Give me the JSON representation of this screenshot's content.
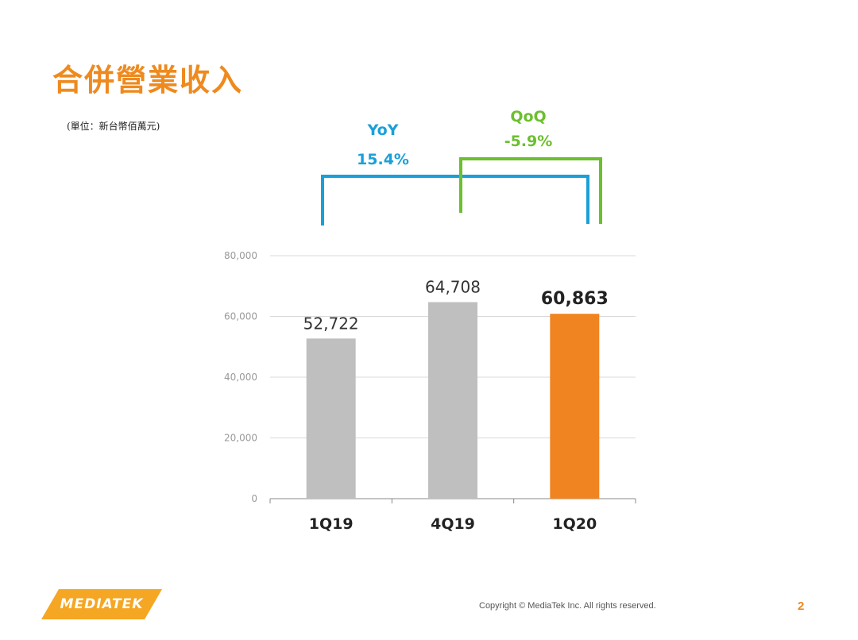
{
  "slide": {
    "title": "合併營業收入",
    "unit_note": "(單位：新台幣佰萬元)",
    "page_number": "2"
  },
  "growth": {
    "yoy_label": "YoY",
    "yoy_value": "15.4%",
    "qoq_label": "QoQ",
    "qoq_value": "-5.9%",
    "yoy_color": "#1aa0d8",
    "qoq_color": "#6cbf2e"
  },
  "chart_data": {
    "type": "bar",
    "categories": [
      "1Q19",
      "4Q19",
      "1Q20"
    ],
    "values": [
      52722,
      64708,
      60863
    ],
    "value_labels": [
      "52,722",
      "64,708",
      "60,863"
    ],
    "highlight_index": 2,
    "colors": [
      "#bfbfbf",
      "#bfbfbf",
      "#f08421"
    ],
    "ylim": [
      0,
      80000
    ],
    "yticks": [
      0,
      20000,
      40000,
      60000,
      80000
    ],
    "ytick_labels": [
      "0",
      "20,000",
      "40,000",
      "60,000",
      "80,000"
    ],
    "grid": true,
    "title": "",
    "xlabel": "",
    "ylabel": ""
  },
  "footer": {
    "logo_text": "MEDIATEK",
    "logo_color": "#f5a623",
    "copyright": "Copyright © MediaTek Inc. All rights reserved."
  }
}
